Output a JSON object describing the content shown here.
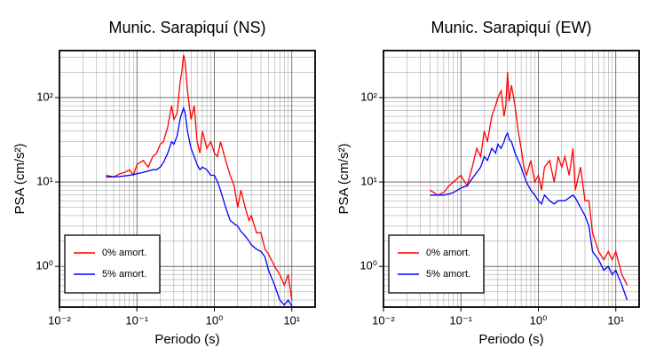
{
  "chart_data": [
    {
      "type": "line",
      "title": "Munic. Sarapiquí (NS)",
      "x_label": "Periodo (s)",
      "y_label": "PSA (cm/s²)",
      "log_x": true,
      "log_y": true,
      "grid": true,
      "minor_grid": true,
      "legend_position": "lower left",
      "xlim": [
        0.01,
        20
      ],
      "ylim": [
        0.33,
        360
      ],
      "xticks": [
        {
          "value": 0.01,
          "label": "10⁻²"
        },
        {
          "value": 0.1,
          "label": "10⁻¹"
        },
        {
          "value": 1,
          "label": "10⁰"
        },
        {
          "value": 10,
          "label": "10¹"
        }
      ],
      "yticks": [
        {
          "value": 1,
          "label": "10⁰"
        },
        {
          "value": 10,
          "label": "10¹"
        },
        {
          "value": 100,
          "label": "10²"
        }
      ],
      "x": [
        0.04,
        0.05,
        0.06,
        0.07,
        0.08,
        0.09,
        0.1,
        0.12,
        0.14,
        0.16,
        0.18,
        0.2,
        0.22,
        0.25,
        0.28,
        0.3,
        0.33,
        0.36,
        0.38,
        0.4,
        0.42,
        0.45,
        0.5,
        0.55,
        0.6,
        0.65,
        0.7,
        0.8,
        0.9,
        1.0,
        1.1,
        1.2,
        1.4,
        1.6,
        1.8,
        2.0,
        2.2,
        2.5,
        2.8,
        3.0,
        3.5,
        4.0,
        4.5,
        5,
        6,
        7,
        8,
        9,
        10
      ],
      "series": [
        {
          "name": "0% amort.",
          "color": "#ff0000",
          "values": [
            12,
            11.5,
            12.5,
            13,
            14,
            12,
            16,
            18,
            15,
            20,
            22,
            28,
            30,
            45,
            80,
            55,
            65,
            150,
            200,
            320,
            260,
            120,
            55,
            80,
            30,
            22,
            40,
            25,
            30,
            22,
            20,
            30,
            18,
            12,
            9,
            5,
            8,
            5,
            3.5,
            4,
            2.5,
            2.5,
            1.6,
            1.4,
            1.0,
            0.8,
            0.6,
            0.8,
            0.4
          ]
        },
        {
          "name": "5% amort.",
          "color": "#0000ff",
          "values": [
            11.5,
            11.5,
            11.6,
            11.8,
            12,
            12.2,
            12.5,
            13,
            13.5,
            14,
            14,
            15,
            17,
            22,
            30,
            28,
            35,
            55,
            65,
            75,
            65,
            40,
            25,
            20,
            16,
            14,
            15,
            14,
            12,
            12,
            10,
            8,
            5,
            3.5,
            3.2,
            3.0,
            2.6,
            2.3,
            2.0,
            1.8,
            1.6,
            1.5,
            1.3,
            0.9,
            0.6,
            0.4,
            0.35,
            0.4,
            0.34
          ]
        }
      ]
    },
    {
      "type": "line",
      "title": "Munic. Sarapiquí (EW)",
      "x_label": "Periodo (s)",
      "y_label": "PSA (cm/s²)",
      "log_x": true,
      "log_y": true,
      "grid": true,
      "minor_grid": true,
      "legend_position": "lower left",
      "xlim": [
        0.01,
        20
      ],
      "ylim": [
        0.33,
        360
      ],
      "xticks": [
        {
          "value": 0.01,
          "label": "10⁻²"
        },
        {
          "value": 0.1,
          "label": "10⁻¹"
        },
        {
          "value": 1,
          "label": "10⁰"
        },
        {
          "value": 10,
          "label": "10¹"
        }
      ],
      "yticks": [
        {
          "value": 1,
          "label": "10⁰"
        },
        {
          "value": 10,
          "label": "10¹"
        },
        {
          "value": 100,
          "label": "10²"
        }
      ],
      "x": [
        0.04,
        0.05,
        0.06,
        0.07,
        0.08,
        0.09,
        0.1,
        0.12,
        0.14,
        0.16,
        0.18,
        0.2,
        0.22,
        0.25,
        0.28,
        0.3,
        0.33,
        0.36,
        0.38,
        0.4,
        0.42,
        0.45,
        0.5,
        0.55,
        0.6,
        0.65,
        0.7,
        0.8,
        0.9,
        1.0,
        1.1,
        1.2,
        1.4,
        1.6,
        1.8,
        2.0,
        2.2,
        2.5,
        2.8,
        3.0,
        3.5,
        4.0,
        4.5,
        5,
        6,
        7,
        8,
        9,
        10,
        12,
        14
      ],
      "series": [
        {
          "name": "0% amort.",
          "color": "#ff0000",
          "values": [
            8,
            7,
            7.5,
            9,
            10,
            11,
            12,
            9,
            15,
            25,
            20,
            40,
            30,
            60,
            80,
            100,
            120,
            60,
            80,
            200,
            90,
            140,
            80,
            40,
            25,
            15,
            12,
            18,
            10,
            12,
            8,
            15,
            18,
            10,
            20,
            15,
            20,
            12,
            25,
            8,
            15,
            6,
            6,
            2.5,
            1.5,
            1.2,
            1.5,
            1.2,
            1.5,
            0.8,
            0.6
          ]
        },
        {
          "name": "5% amort.",
          "color": "#0000ff",
          "values": [
            7,
            7,
            7,
            7.2,
            7.5,
            8,
            8.5,
            9,
            11,
            13,
            15,
            20,
            18,
            25,
            22,
            28,
            25,
            30,
            35,
            38,
            32,
            30,
            22,
            18,
            15,
            12,
            10,
            8,
            7,
            6,
            5.5,
            7,
            6,
            5.5,
            6,
            6,
            6,
            6.5,
            7,
            6.5,
            5,
            4,
            3,
            1.5,
            1.2,
            0.9,
            1.0,
            0.8,
            0.9,
            0.6,
            0.4
          ]
        }
      ]
    }
  ]
}
